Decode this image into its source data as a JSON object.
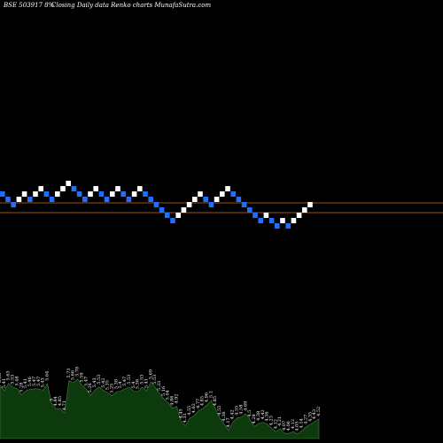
{
  "header": {
    "ticker": "BSE 503917 8%",
    "caption": "Closing Daily data  Renko  charts MunafaSutra.com"
  },
  "colors": {
    "background": "#000000",
    "up_brick": "#ffffff",
    "down_brick": "#1e6fff",
    "reference_line": "#d2691e",
    "volume_fill": "#0c3a0c",
    "volume_outline": "#4a7a4a"
  },
  "chart_data": [
    {
      "type": "renko",
      "bricks": [
        {
          "level": 0,
          "dir": "down"
        },
        {
          "level": -1,
          "dir": "down"
        },
        {
          "level": -2,
          "dir": "down"
        },
        {
          "level": -1,
          "dir": "up"
        },
        {
          "level": 0,
          "dir": "up"
        },
        {
          "level": -1,
          "dir": "down"
        },
        {
          "level": 0,
          "dir": "up"
        },
        {
          "level": 1,
          "dir": "up"
        },
        {
          "level": 0,
          "dir": "down"
        },
        {
          "level": -1,
          "dir": "down"
        },
        {
          "level": 0,
          "dir": "up"
        },
        {
          "level": 1,
          "dir": "up"
        },
        {
          "level": 2,
          "dir": "up"
        },
        {
          "level": 1,
          "dir": "down"
        },
        {
          "level": 0,
          "dir": "down"
        },
        {
          "level": -1,
          "dir": "down"
        },
        {
          "level": 0,
          "dir": "up"
        },
        {
          "level": 1,
          "dir": "up"
        },
        {
          "level": 0,
          "dir": "down"
        },
        {
          "level": -1,
          "dir": "down"
        },
        {
          "level": 0,
          "dir": "up"
        },
        {
          "level": 1,
          "dir": "up"
        },
        {
          "level": 0,
          "dir": "down"
        },
        {
          "level": -1,
          "dir": "down"
        },
        {
          "level": 0,
          "dir": "up"
        },
        {
          "level": 1,
          "dir": "up"
        },
        {
          "level": 0,
          "dir": "down"
        },
        {
          "level": -1,
          "dir": "down"
        },
        {
          "level": -2,
          "dir": "down"
        },
        {
          "level": -3,
          "dir": "down"
        },
        {
          "level": -4,
          "dir": "down"
        },
        {
          "level": -5,
          "dir": "down"
        },
        {
          "level": -4,
          "dir": "up"
        },
        {
          "level": -3,
          "dir": "up"
        },
        {
          "level": -2,
          "dir": "up"
        },
        {
          "level": -1,
          "dir": "up"
        },
        {
          "level": 0,
          "dir": "up"
        },
        {
          "level": -1,
          "dir": "down"
        },
        {
          "level": -2,
          "dir": "down"
        },
        {
          "level": -1,
          "dir": "up"
        },
        {
          "level": 0,
          "dir": "up"
        },
        {
          "level": 1,
          "dir": "up"
        },
        {
          "level": 0,
          "dir": "down"
        },
        {
          "level": -1,
          "dir": "down"
        },
        {
          "level": -2,
          "dir": "down"
        },
        {
          "level": -3,
          "dir": "down"
        },
        {
          "level": -4,
          "dir": "down"
        },
        {
          "level": -5,
          "dir": "down"
        },
        {
          "level": -4,
          "dir": "up"
        },
        {
          "level": -5,
          "dir": "down"
        },
        {
          "level": -6,
          "dir": "down"
        },
        {
          "level": -5,
          "dir": "up"
        },
        {
          "level": -6,
          "dir": "down"
        },
        {
          "level": -5,
          "dir": "up"
        },
        {
          "level": -4,
          "dir": "up"
        },
        {
          "level": -3,
          "dir": "up"
        },
        {
          "level": -2,
          "dir": "up"
        }
      ],
      "reference_lines": [
        "upper",
        "lower"
      ]
    },
    {
      "type": "area",
      "name": "volume",
      "labels": [
        "5.58",
        "5.41",
        "5.65",
        "5.53",
        "5.48",
        "5.28",
        "5.41",
        "5.46",
        "5.47",
        "5.47",
        "5.43",
        "5.64",
        "5",
        "4.84",
        "4.85",
        "4.71",
        "5.73",
        "5.66",
        "5.78",
        "5.59",
        "5.47",
        "5.26",
        "5.43",
        "5.53",
        "5.42",
        "5.35",
        "5.25",
        "5.38",
        "5.4",
        "5.47",
        "5.53",
        "5.4",
        "5.38",
        "5.53",
        "5.41",
        "5.69",
        "5.53",
        "5.33",
        "5.16",
        "5.04",
        "4.86",
        "4.92",
        "4.45",
        "4.31",
        "4.55",
        "4.62",
        "4.77",
        "4.85",
        "4.96",
        "5.1",
        "4.85",
        "4.55",
        "4.36",
        "4.17",
        "4.42",
        "4.55",
        "4.58",
        "4.69",
        "4.5",
        "4.28",
        "4.38",
        "4.42",
        "4.36",
        "4.23",
        "4.12",
        "4.21",
        "4.07",
        "4.06",
        "4.12",
        "4.05",
        "4.14",
        "4.27",
        "4.35",
        "4.43",
        "4.52"
      ],
      "values": [
        5.58,
        5.41,
        5.65,
        5.53,
        5.48,
        5.28,
        5.41,
        5.46,
        5.47,
        5.47,
        5.43,
        5.64,
        5.0,
        4.84,
        4.85,
        4.71,
        5.73,
        5.66,
        5.78,
        5.59,
        5.47,
        5.26,
        5.43,
        5.53,
        5.42,
        5.35,
        5.25,
        5.38,
        5.4,
        5.47,
        5.53,
        5.4,
        5.38,
        5.53,
        5.41,
        5.69,
        5.53,
        5.33,
        5.16,
        5.04,
        4.86,
        4.92,
        4.45,
        4.31,
        4.55,
        4.62,
        4.77,
        4.85,
        4.96,
        5.1,
        4.85,
        4.55,
        4.36,
        4.17,
        4.42,
        4.55,
        4.58,
        4.69,
        4.5,
        4.28,
        4.38,
        4.42,
        4.36,
        4.23,
        4.12,
        4.21,
        4.07,
        4.06,
        4.12,
        4.05,
        4.14,
        4.27,
        4.35,
        4.43,
        4.52
      ]
    }
  ]
}
